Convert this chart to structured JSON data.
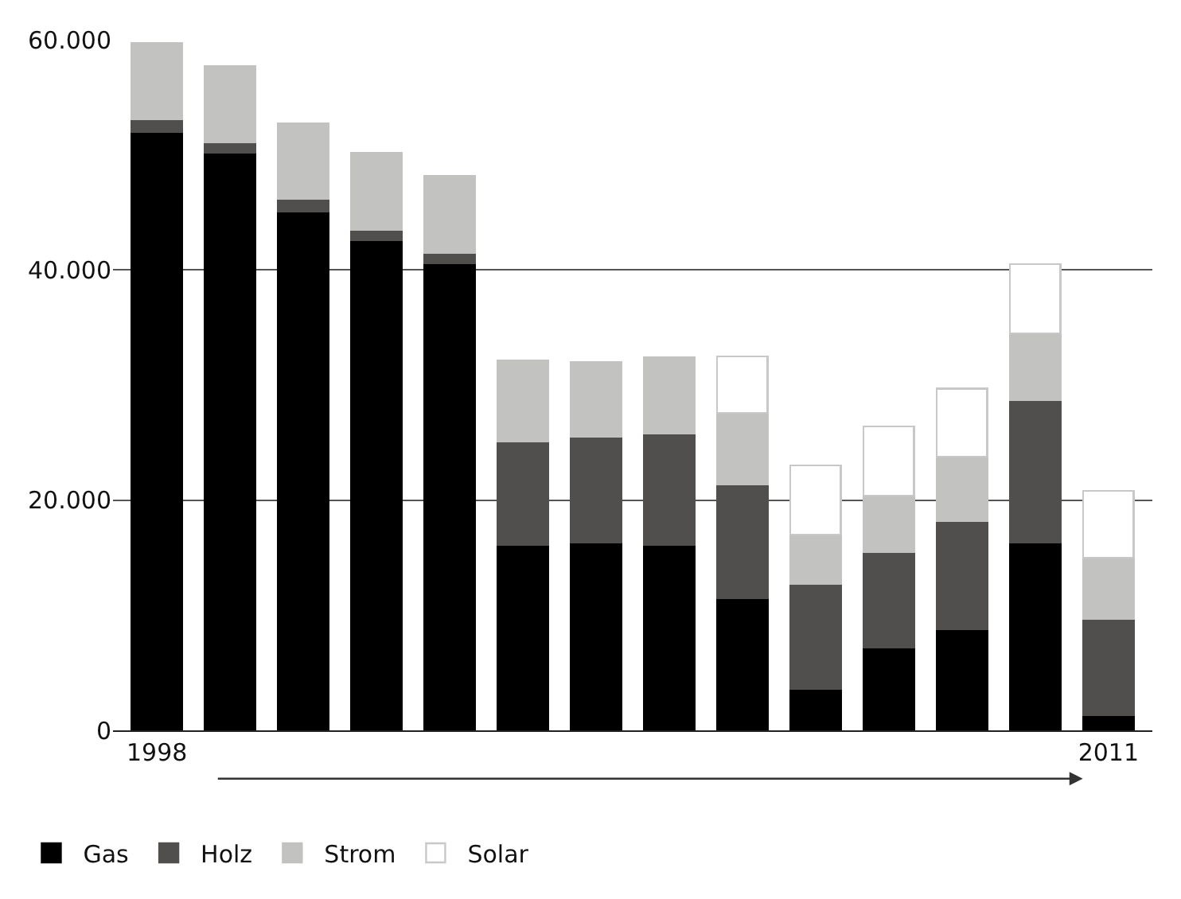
{
  "chart_data": {
    "type": "bar",
    "stacked": true,
    "categories": [
      "1998",
      null,
      null,
      null,
      null,
      null,
      null,
      null,
      null,
      null,
      null,
      null,
      null,
      "2011"
    ],
    "series": [
      {
        "name": "Gas",
        "color": "#000000",
        "values": [
          52000,
          50200,
          45100,
          42600,
          40600,
          16100,
          16300,
          16100,
          11500,
          3600,
          7200,
          8800,
          16300,
          1300
        ]
      },
      {
        "name": "Holz",
        "color": "#504f4d",
        "values": [
          1100,
          900,
          1100,
          900,
          900,
          9000,
          9200,
          9700,
          9900,
          9100,
          8300,
          9400,
          12400,
          8400
        ]
      },
      {
        "name": "Strom",
        "color": "#c2c2c0",
        "values": [
          6600,
          6600,
          6500,
          6700,
          6700,
          7000,
          6500,
          6600,
          6200,
          4300,
          4900,
          5600,
          5800,
          5300
        ]
      },
      {
        "name": "Solar",
        "color": "#ffffff",
        "values": [
          null,
          null,
          null,
          null,
          null,
          null,
          null,
          null,
          4900,
          6000,
          6000,
          5900,
          6000,
          5800
        ]
      }
    ],
    "ylim": [
      0,
      60000
    ],
    "yticks": [
      {
        "value": 0,
        "label": "0"
      },
      {
        "value": 20000,
        "label": "20.000"
      },
      {
        "value": 40000,
        "label": "40.000"
      },
      {
        "value": 60000,
        "label": "60.000"
      }
    ],
    "grid": "y",
    "legend": "bottom"
  }
}
